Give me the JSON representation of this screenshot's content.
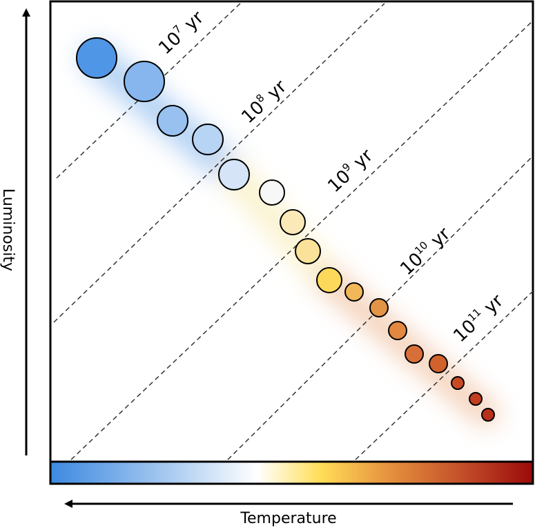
{
  "axes": {
    "y_label": "Luminosity",
    "x_label": "Temperature"
  },
  "isochrones": [
    {
      "base": "10",
      "exponent": "7",
      "unit": "yr"
    },
    {
      "base": "10",
      "exponent": "8",
      "unit": "yr"
    },
    {
      "base": "10",
      "exponent": "9",
      "unit": "yr"
    },
    {
      "base": "10",
      "exponent": "10",
      "unit": "yr"
    },
    {
      "base": "10",
      "exponent": "11",
      "unit": "yr"
    }
  ],
  "color_scale": {
    "stops": [
      "#3d89e0",
      "#a6c9f0",
      "#ffffff",
      "#ffde57",
      "#e6923e",
      "#c4502a",
      "#9b0a0a"
    ]
  },
  "stars": [
    {
      "color": "#5096e6"
    },
    {
      "color": "#87b6ee"
    },
    {
      "color": "#98c1ef"
    },
    {
      "color": "#b8d4f4"
    },
    {
      "color": "#d5e4f7"
    },
    {
      "color": "#f7f7f7"
    },
    {
      "color": "#fbe9b7"
    },
    {
      "color": "#fbe29a"
    },
    {
      "color": "#fdd95b"
    },
    {
      "color": "#f1b85a"
    },
    {
      "color": "#e39446"
    },
    {
      "color": "#e38841"
    },
    {
      "color": "#d96f38"
    },
    {
      "color": "#d2622c"
    },
    {
      "color": "#c74a25"
    },
    {
      "color": "#c13e20"
    },
    {
      "color": "#b6301b"
    }
  ]
}
